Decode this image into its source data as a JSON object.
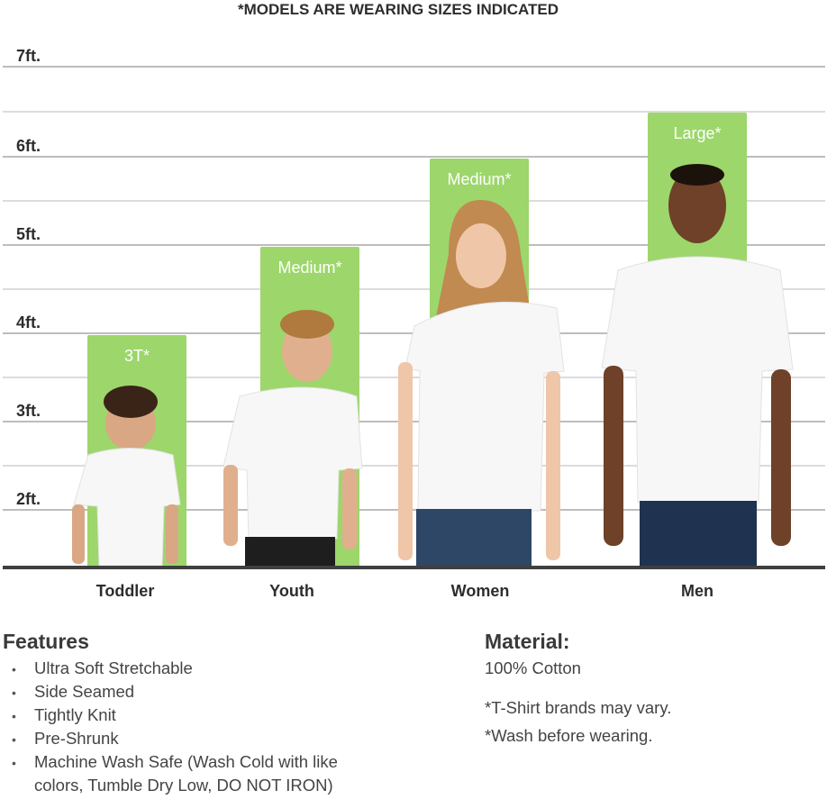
{
  "header": {
    "title": "*MODELS ARE WEARING SIZES INDICATED"
  },
  "scale": {
    "labels": [
      "7ft.",
      "6ft.",
      "5ft.",
      "4ft.",
      "3ft.",
      "2ft."
    ]
  },
  "colors": {
    "bar": "#9dd66b",
    "baseline": "#3f3f3f",
    "gridline": "#bdbdbd"
  },
  "models": [
    {
      "category": "Toddler",
      "size": "3T*",
      "height_ft": 4.0
    },
    {
      "category": "Youth",
      "size": "Medium*",
      "height_ft": 5.0
    },
    {
      "category": "Women",
      "size": "Medium*",
      "height_ft": 6.0
    },
    {
      "category": "Men",
      "size": "Large*",
      "height_ft": 6.5
    }
  ],
  "features": {
    "heading": "Features",
    "items": [
      "Ultra Soft Stretchable",
      "Side Seamed",
      "Tightly Knit",
      "Pre-Shrunk",
      "Machine Wash Safe (Wash Cold with like",
      "colors, Tumble Dry Low, DO NOT IRON)"
    ]
  },
  "material": {
    "heading": "Material:",
    "value": "100% Cotton",
    "notes": [
      "*T-Shirt brands may vary.",
      "*Wash before wearing."
    ]
  }
}
